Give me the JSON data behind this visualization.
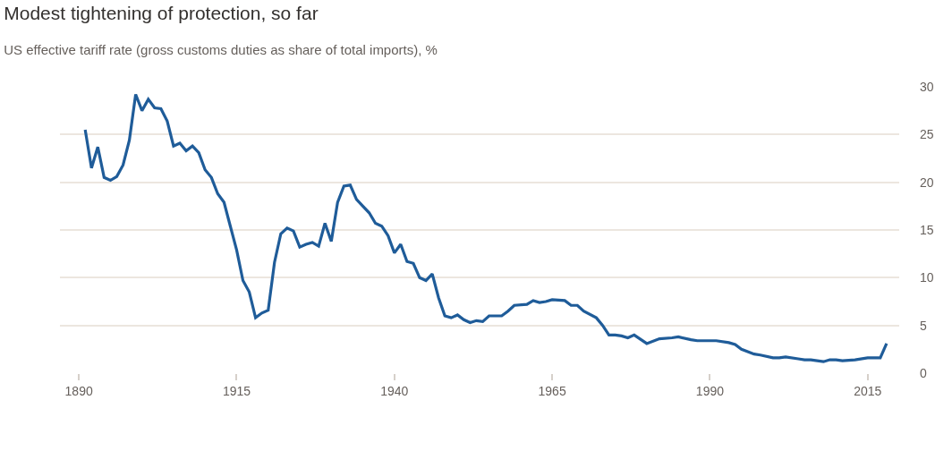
{
  "chart_data": {
    "type": "line",
    "title": "Modest tightening of protection, so far",
    "subtitle": "US effective tariff rate (gross customs duties as share of total imports), %",
    "x": [
      1891,
      1892,
      1893,
      1894,
      1895,
      1896,
      1897,
      1898,
      1899,
      1900,
      1901,
      1902,
      1903,
      1904,
      1905,
      1906,
      1907,
      1908,
      1909,
      1910,
      1911,
      1912,
      1913,
      1914,
      1915,
      1916,
      1917,
      1918,
      1919,
      1920,
      1921,
      1922,
      1923,
      1924,
      1925,
      1926,
      1927,
      1928,
      1929,
      1930,
      1931,
      1932,
      1933,
      1934,
      1935,
      1936,
      1937,
      1938,
      1939,
      1940,
      1941,
      1942,
      1943,
      1944,
      1945,
      1946,
      1947,
      1948,
      1949,
      1950,
      1951,
      1952,
      1953,
      1954,
      1955,
      1957,
      1958,
      1959,
      1961,
      1962,
      1963,
      1964,
      1965,
      1967,
      1968,
      1969,
      1970,
      1972,
      1973,
      1974,
      1975,
      1976,
      1977,
      1978,
      1980,
      1982,
      1984,
      1985,
      1987,
      1988,
      1990,
      1991,
      1993,
      1994,
      1995,
      1997,
      1998,
      2000,
      2001,
      2002,
      2004,
      2005,
      2006,
      2008,
      2009,
      2010,
      2011,
      2013,
      2015,
      2017,
      2018
    ],
    "series": [
      {
        "color": "#1f5c99",
        "values": [
          25.5,
          21.5,
          23.7,
          20.5,
          20.2,
          20.6,
          21.8,
          24.4,
          29.2,
          27.5,
          28.7,
          27.8,
          27.7,
          26.4,
          23.8,
          24.1,
          23.3,
          23.8,
          23.1,
          21.3,
          20.5,
          18.8,
          17.9,
          15.4,
          12.9,
          9.7,
          8.5,
          5.8,
          6.3,
          6.6,
          11.6,
          14.6,
          15.2,
          14.9,
          13.2,
          13.5,
          13.7,
          13.3,
          15.7,
          13.8,
          17.9,
          19.6,
          19.7,
          18.2,
          17.5,
          16.8,
          15.7,
          15.4,
          14.4,
          12.6,
          13.5,
          11.7,
          11.5,
          10.0,
          9.7,
          10.4,
          7.9,
          6.0,
          5.8,
          6.1,
          5.6,
          5.3,
          5.5,
          5.4,
          6.0,
          6.0,
          6.5,
          7.1,
          7.2,
          7.6,
          7.4,
          7.5,
          7.7,
          7.6,
          7.1,
          7.1,
          6.5,
          5.8,
          5.0,
          4.0,
          4.0,
          3.9,
          3.7,
          4.0,
          3.1,
          3.6,
          3.7,
          3.8,
          3.5,
          3.4,
          3.4,
          3.4,
          3.2,
          3.0,
          2.5,
          2.0,
          1.9,
          1.6,
          1.6,
          1.7,
          1.5,
          1.4,
          1.4,
          1.2,
          1.4,
          1.4,
          1.3,
          1.4,
          1.6,
          1.6,
          3.1
        ]
      }
    ],
    "xlim": [
      1887,
      2020
    ],
    "xticks": [
      1890,
      1915,
      1940,
      1965,
      1990,
      2015
    ],
    "ylim": [
      0,
      30
    ],
    "yticks": [
      0,
      5,
      10,
      15,
      20,
      25,
      30
    ],
    "grid": "y",
    "line_style": "solid"
  }
}
